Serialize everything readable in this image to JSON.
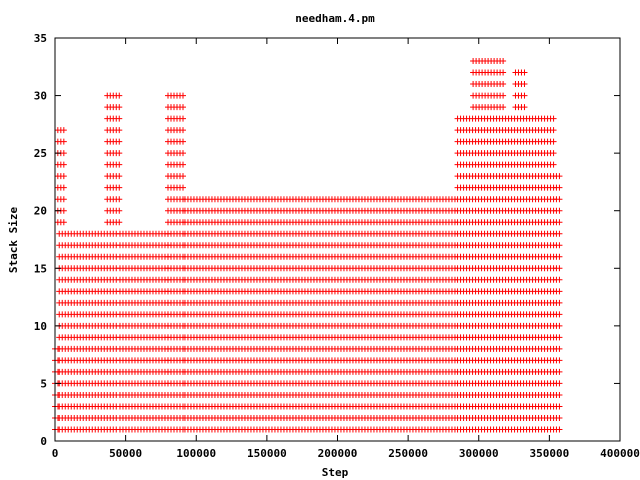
{
  "chart_data": {
    "type": "scatter",
    "title": "needham.4.pm",
    "xlabel": "Step",
    "ylabel": "Stack Size",
    "xlim": [
      0,
      400000
    ],
    "ylim": [
      0,
      35
    ],
    "x_ticks": [
      0,
      50000,
      100000,
      150000,
      200000,
      250000,
      300000,
      350000,
      400000
    ],
    "y_ticks": [
      0,
      5,
      10,
      15,
      20,
      25,
      30,
      35
    ],
    "grid": false,
    "legend": "none",
    "marker": "+",
    "color": "#ff0000",
    "clusters": [
      {
        "x_range": [
          0,
          3000
        ],
        "y_values": [
          1,
          2,
          3,
          4,
          5,
          6,
          7,
          8
        ]
      },
      {
        "x_range": [
          3000,
          45000
        ],
        "y_values": [
          1,
          2,
          3,
          4,
          5,
          6,
          7,
          8,
          9,
          10,
          11,
          12,
          13,
          14,
          15,
          16,
          17,
          18
        ]
      },
      {
        "x_range": [
          2000,
          8000
        ],
        "y_values": [
          19,
          20,
          21,
          22,
          23,
          24,
          25,
          26,
          27
        ]
      },
      {
        "x_range": [
          37000,
          46000
        ],
        "y_values": [
          19,
          20,
          21,
          22,
          23,
          24,
          25,
          26,
          27,
          28,
          29,
          30
        ]
      },
      {
        "x_range": [
          46000,
          80000
        ],
        "y_values": [
          1,
          2,
          3,
          4,
          5,
          6,
          7,
          8,
          9,
          10,
          11,
          12,
          13,
          14,
          15,
          16,
          17,
          18
        ]
      },
      {
        "x_range": [
          80000,
          92000
        ],
        "y_values": [
          1,
          2,
          3,
          4,
          5,
          6,
          7,
          8,
          9,
          10,
          11,
          12,
          13,
          14,
          15,
          16,
          17,
          18,
          19,
          20,
          21,
          22,
          23,
          24,
          25,
          26,
          27,
          28,
          29,
          30
        ]
      },
      {
        "x_range": [
          92000,
          285000
        ],
        "y_values": [
          1,
          2,
          3,
          4,
          5,
          6,
          7,
          8,
          9,
          10,
          11,
          12,
          13,
          14,
          15,
          16,
          17,
          18,
          19,
          20,
          21
        ]
      },
      {
        "x_range": [
          285000,
          355000
        ],
        "y_values": [
          1,
          2,
          3,
          4,
          5,
          6,
          7,
          8,
          9,
          10,
          11,
          12,
          13,
          14,
          15,
          16,
          17,
          18,
          19,
          20,
          21,
          22,
          23,
          24,
          25,
          26,
          27,
          28
        ]
      },
      {
        "x_range": [
          296000,
          318000
        ],
        "y_values": [
          29,
          30,
          31,
          32,
          33
        ]
      },
      {
        "x_range": [
          326000,
          334000
        ],
        "y_values": [
          29,
          30,
          31,
          32
        ]
      },
      {
        "x_range": [
          355000,
          358000
        ],
        "y_values": [
          1,
          2,
          3,
          4,
          5,
          6,
          7,
          8,
          9,
          10,
          11,
          12,
          13,
          14,
          15,
          16,
          17,
          18,
          19,
          20,
          21,
          22,
          23
        ]
      }
    ]
  }
}
